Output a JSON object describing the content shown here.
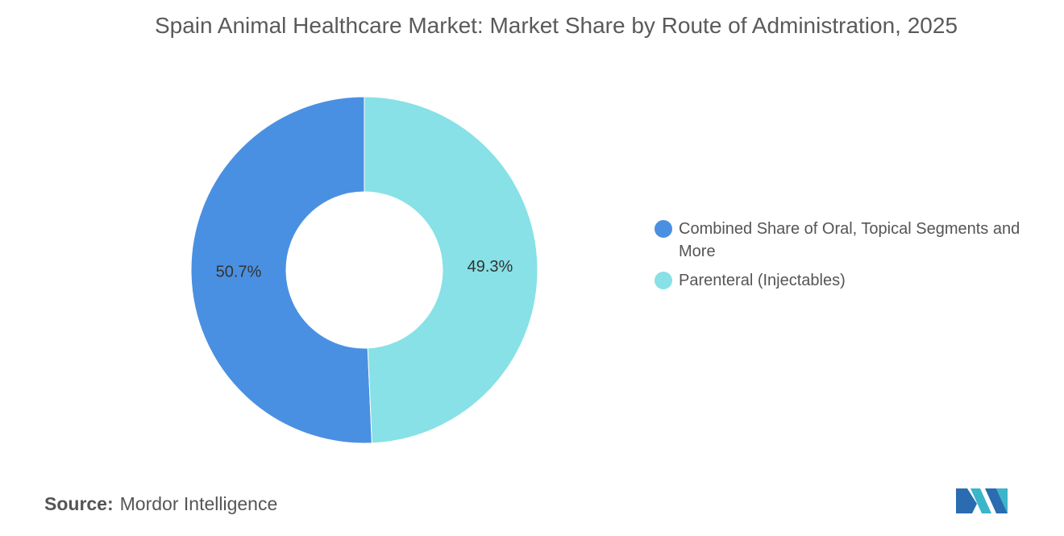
{
  "chart_data": {
    "type": "donut",
    "title": "Spain Animal Healthcare Market: Market Share by Route of Administration, 2025",
    "categories": [
      "Combined Share of Oral, Topical Segments and More",
      "Parenteral (Injectables)"
    ],
    "values": [
      50.7,
      49.3
    ],
    "value_labels": [
      "50.7%",
      "49.3%"
    ],
    "colors": [
      "#4a90e2",
      "#87e1e6"
    ],
    "source_label": "Source:",
    "source": "Mordor Intelligence"
  }
}
